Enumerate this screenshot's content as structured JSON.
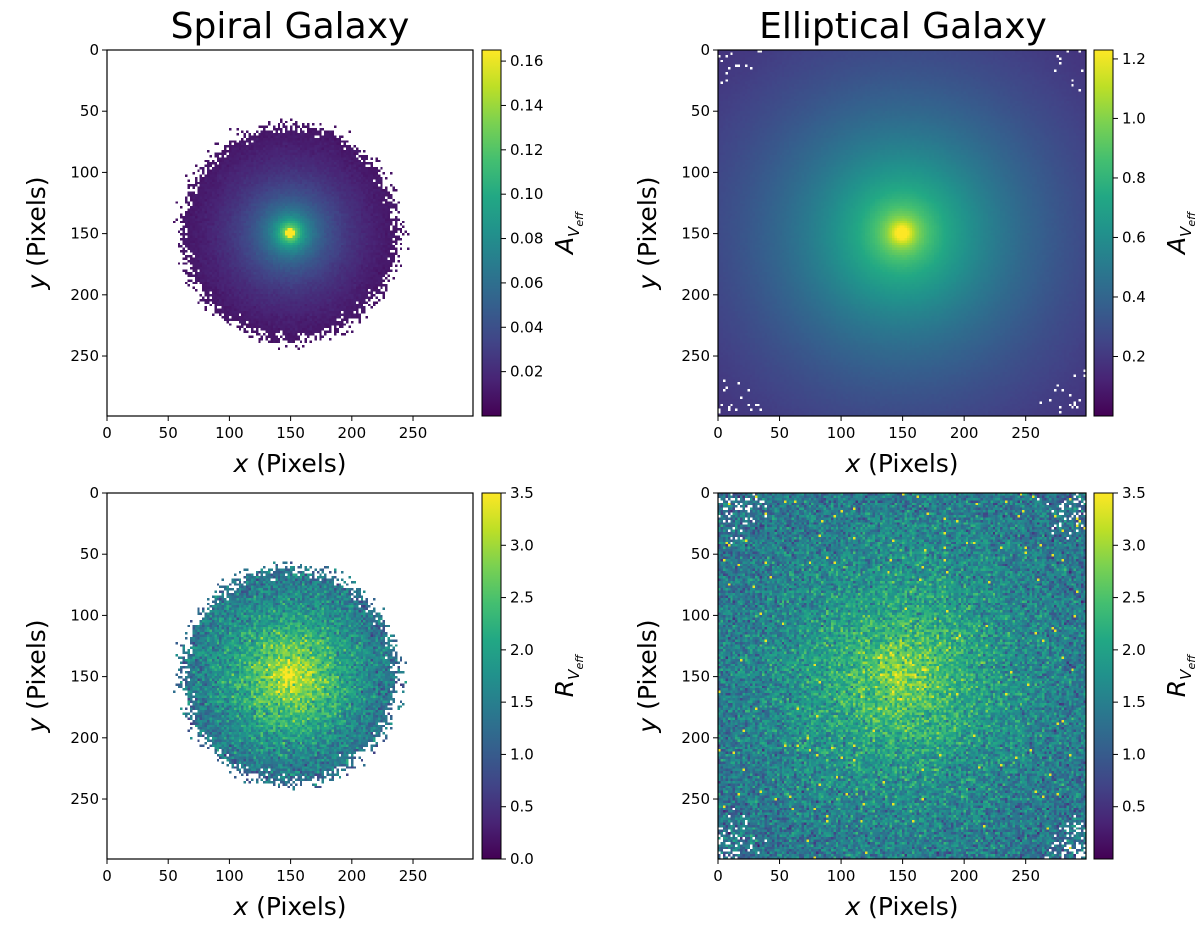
{
  "figure": {
    "columns": [
      {
        "title": "Spiral Galaxy"
      },
      {
        "title": "Elliptical Galaxy"
      }
    ]
  },
  "chart_data": [
    {
      "type": "heatmap",
      "title": "Spiral Galaxy",
      "xlabel_var": "x",
      "xlabel_unit": "(Pixels)",
      "ylabel_var": "y",
      "ylabel_unit": "(Pixels)",
      "xlim": [
        0,
        299
      ],
      "ylim": [
        299,
        0
      ],
      "xticks": [
        "0",
        "50",
        "100",
        "150",
        "200",
        "250"
      ],
      "yticks": [
        "0",
        "50",
        "100",
        "150",
        "200",
        "250"
      ],
      "colormap": "viridis",
      "colorbar": {
        "symbol": "A",
        "sub": "V",
        "subsub": "eff",
        "range": [
          0,
          0.165
        ],
        "ticks": [
          "0.02",
          "0.04",
          "0.06",
          "0.08",
          "0.10",
          "0.12",
          "0.14",
          "0.16"
        ]
      },
      "field": {
        "shape": "disk",
        "center": [
          150,
          150
        ],
        "radius": 88,
        "peak": 0.165,
        "noise": 0.01
      }
    },
    {
      "type": "heatmap",
      "title": "Elliptical Galaxy",
      "xlabel_var": "x",
      "xlabel_unit": "(Pixels)",
      "ylabel_var": "y",
      "ylabel_unit": "(Pixels)",
      "xlim": [
        0,
        299
      ],
      "ylim": [
        299,
        0
      ],
      "xticks": [
        "0",
        "50",
        "100",
        "150",
        "200",
        "250"
      ],
      "yticks": [
        "0",
        "50",
        "100",
        "150",
        "200",
        "250"
      ],
      "colormap": "viridis",
      "colorbar": {
        "symbol": "A",
        "sub": "V",
        "subsub": "eff",
        "range": [
          0,
          1.23
        ],
        "ticks": [
          "0.2",
          "0.4",
          "0.6",
          "0.8",
          "1.0",
          "1.2"
        ]
      },
      "field": {
        "shape": "full",
        "center": [
          150,
          150
        ],
        "radius": 300,
        "peak": 1.23,
        "noise": 0.02
      }
    },
    {
      "type": "heatmap",
      "title": "",
      "xlabel_var": "x",
      "xlabel_unit": "(Pixels)",
      "ylabel_var": "y",
      "ylabel_unit": "(Pixels)",
      "xlim": [
        0,
        299
      ],
      "ylim": [
        299,
        0
      ],
      "xticks": [
        "0",
        "50",
        "100",
        "150",
        "200",
        "250"
      ],
      "yticks": [
        "0",
        "50",
        "100",
        "150",
        "200",
        "250"
      ],
      "colormap": "viridis",
      "colorbar": {
        "symbol": "R",
        "sub": "V",
        "subsub": "eff",
        "range": [
          0,
          3.5
        ],
        "ticks": [
          "0.0",
          "0.5",
          "1.0",
          "1.5",
          "2.0",
          "2.5",
          "3.0",
          "3.5"
        ]
      },
      "field": {
        "shape": "disk",
        "center": [
          150,
          150
        ],
        "radius": 88,
        "peak": 3.1,
        "noise": 0.45
      }
    },
    {
      "type": "heatmap",
      "title": "",
      "xlabel_var": "x",
      "xlabel_unit": "(Pixels)",
      "ylabel_var": "y",
      "ylabel_unit": "(Pixels)",
      "xlim": [
        0,
        299
      ],
      "ylim": [
        299,
        0
      ],
      "xticks": [
        "0",
        "50",
        "100",
        "150",
        "200",
        "250"
      ],
      "yticks": [
        "0",
        "50",
        "100",
        "150",
        "200",
        "250"
      ],
      "colormap": "viridis",
      "colorbar": {
        "symbol": "R",
        "sub": "V",
        "subsub": "eff",
        "range": [
          0,
          3.5
        ],
        "ticks": [
          "0.5",
          "1.0",
          "1.5",
          "2.0",
          "2.5",
          "3.0",
          "3.5"
        ]
      },
      "field": {
        "shape": "full",
        "center": [
          150,
          150
        ],
        "radius": 300,
        "peak": 3.2,
        "noise": 0.5
      }
    }
  ]
}
